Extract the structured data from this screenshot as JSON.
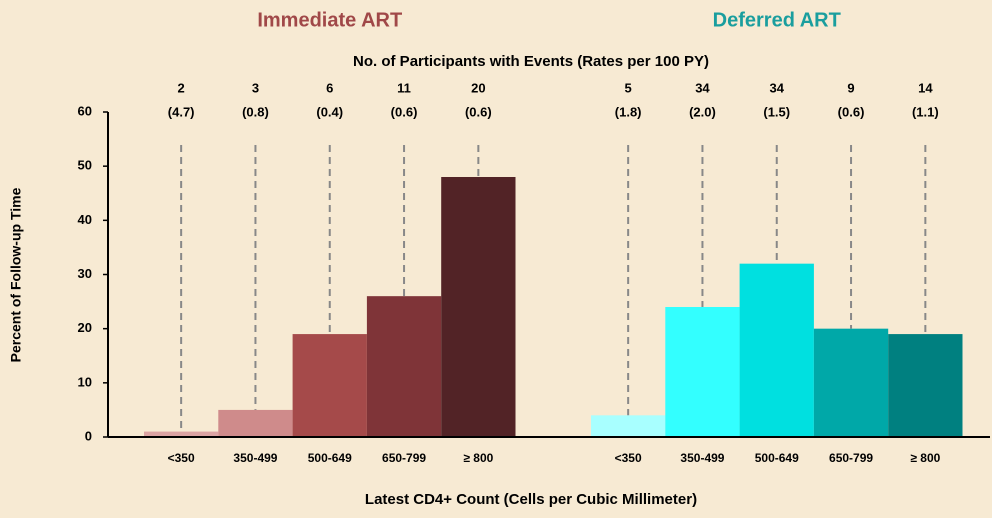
{
  "chart_data": {
    "type": "bar",
    "annotation_title": "No. of Participants with Events (Rates per 100 PY)",
    "x_label": "Latest CD4+ Count (Cells per Cubic Millimeter)",
    "y_label": "Percent of Follow-up Time",
    "ylim": [
      0,
      60
    ],
    "yticks": [
      0,
      10,
      20,
      30,
      40,
      50,
      60
    ],
    "groups": [
      {
        "name": "Immediate ART",
        "color": "#a04848",
        "categories": [
          "<350",
          "350-499",
          "500-649",
          "650-799",
          "≥ 800"
        ],
        "values": [
          1,
          5,
          19,
          26,
          48
        ],
        "colors": [
          "#dba3a3",
          "#cf8b8b",
          "#a54a4a",
          "#7f3438",
          "#522326"
        ],
        "events": [
          2,
          3,
          6,
          11,
          20
        ],
        "rates": [
          4.7,
          0.8,
          0.4,
          0.6,
          0.6
        ],
        "rate_labels": [
          "(4.7)",
          "(0.8)",
          "(0.4)",
          "(0.6)",
          "(0.6)"
        ]
      },
      {
        "name": "Deferred ART",
        "color": "#1a9e9e",
        "categories": [
          "<350",
          "350-499",
          "500-649",
          "650-799",
          "≥ 800"
        ],
        "values": [
          4,
          24,
          32,
          20,
          19
        ],
        "colors": [
          "#a8ffff",
          "#33ffff",
          "#00e0e0",
          "#00a8a8",
          "#008080"
        ],
        "events": [
          5,
          34,
          34,
          9,
          14
        ],
        "rates": [
          1.8,
          2.0,
          1.5,
          0.6,
          1.1
        ],
        "rate_labels": [
          "(1.8)",
          "(2.0)",
          "(1.5)",
          "(0.6)",
          "(1.1)"
        ]
      }
    ]
  }
}
